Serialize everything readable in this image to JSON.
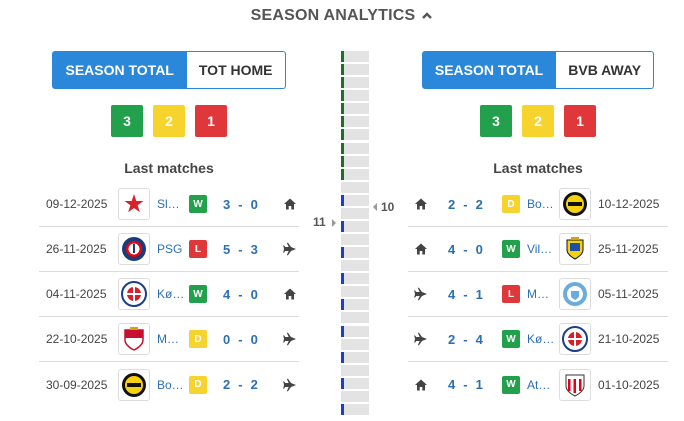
{
  "header": {
    "title": "SEASON ANALYTICS"
  },
  "left": {
    "tabs": {
      "active": "SEASON TOTAL",
      "inactive": "TOT HOME"
    },
    "counts": {
      "wins": "3",
      "draws": "2",
      "losses": "1"
    },
    "last_matches_title": "Last matches",
    "matches": [
      {
        "date": "09-12-2025",
        "team": "Sl…",
        "logo": "slavia-logo",
        "result": "W",
        "home": "3",
        "away": "0",
        "venue": "home"
      },
      {
        "date": "26-11-2025",
        "team": "PSG",
        "logo": "psg-logo",
        "result": "L",
        "home": "5",
        "away": "3",
        "venue": "away"
      },
      {
        "date": "04-11-2025",
        "team": "Kø…",
        "logo": "copenhagen-logo",
        "result": "W",
        "home": "4",
        "away": "0",
        "venue": "home"
      },
      {
        "date": "22-10-2025",
        "team": "M…",
        "logo": "monaco-logo",
        "result": "D",
        "home": "0",
        "away": "0",
        "venue": "away"
      },
      {
        "date": "30-09-2025",
        "team": "Bo…",
        "logo": "bodo-glimt-logo",
        "result": "D",
        "home": "2",
        "away": "2",
        "venue": "away"
      }
    ]
  },
  "right": {
    "tabs": {
      "active": "SEASON TOTAL",
      "inactive": "BVB AWAY"
    },
    "counts": {
      "wins": "3",
      "draws": "2",
      "losses": "1"
    },
    "last_matches_title": "Last matches",
    "matches": [
      {
        "date": "10-12-2025",
        "team": "Bo…",
        "logo": "bodo-glimt-logo",
        "result": "D",
        "home": "2",
        "away": "2",
        "venue": "home"
      },
      {
        "date": "25-11-2025",
        "team": "Vil…",
        "logo": "villarreal-logo",
        "result": "W",
        "home": "4",
        "away": "0",
        "venue": "home"
      },
      {
        "date": "05-11-2025",
        "team": "M…",
        "logo": "man-city-logo",
        "result": "L",
        "home": "4",
        "away": "1",
        "venue": "away"
      },
      {
        "date": "21-10-2025",
        "team": "Kø…",
        "logo": "copenhagen-logo",
        "result": "W",
        "home": "2",
        "away": "4",
        "venue": "away"
      },
      {
        "date": "01-10-2025",
        "team": "At…",
        "logo": "athletic-logo",
        "result": "W",
        "home": "4",
        "away": "1",
        "venue": "home"
      }
    ]
  },
  "strip": {
    "left_label": "11",
    "right_label": "10",
    "segments": [
      "green",
      "green",
      "green",
      "green",
      "green",
      "green",
      "green",
      "green",
      "green",
      "green",
      "grey",
      "blue",
      "grey",
      "blue",
      "grey",
      "blue",
      "grey",
      "blue",
      "grey",
      "blue",
      "grey",
      "blue",
      "grey",
      "blue",
      "grey",
      "blue",
      "grey",
      "blue"
    ]
  },
  "colors": {
    "accent": "#2b87d9",
    "win": "#22a04b",
    "draw": "#f6d32d",
    "loss": "#e0383a",
    "link": "#2b6fb6"
  }
}
